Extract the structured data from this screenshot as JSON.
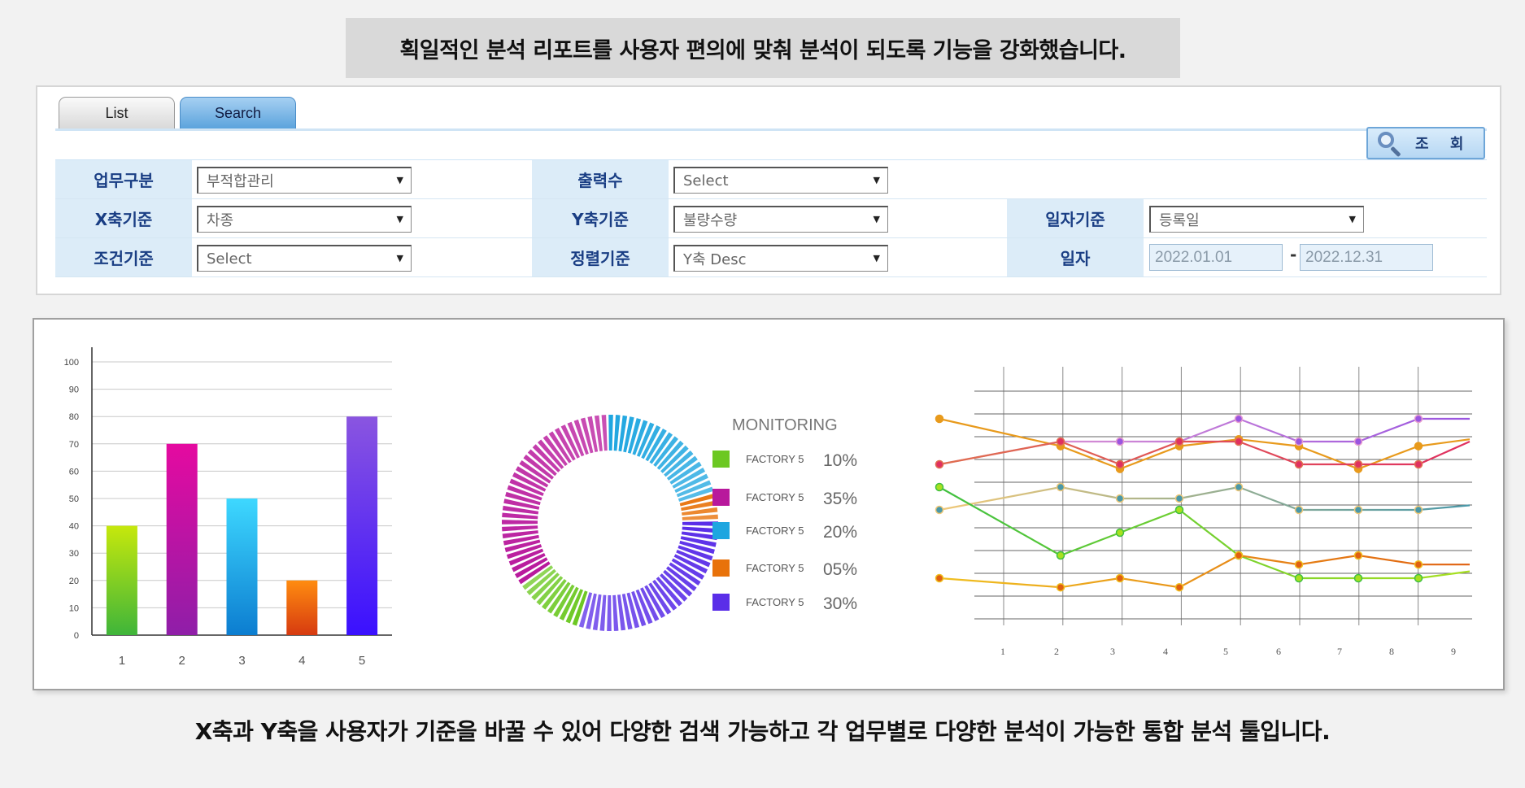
{
  "captions": {
    "top": "획일적인 분석 리포트를 사용자 편의에 맞춰 분석이 되도록 기능을 강화했습니다.",
    "bottom": "X축과 Y축을 사용자가 기준을 바꿀 수 있어 다양한 검색 가능하고 각 업무별로 다양한 분석이 가능한 통합 분석 툴입니다."
  },
  "tabs": [
    {
      "label": "List",
      "active": false
    },
    {
      "label": "Search",
      "active": true
    }
  ],
  "query_button": {
    "label": "조 회",
    "icon": "search-icon"
  },
  "form": {
    "business_type": {
      "label": "업무구분",
      "value": "부적합관리"
    },
    "output_count": {
      "label": "출력수",
      "value": "Select"
    },
    "x_axis": {
      "label": "X축기준",
      "value": "차종"
    },
    "y_axis": {
      "label": "Y축기준",
      "value": "불량수량"
    },
    "date_basis": {
      "label": "일자기준",
      "value": "등록일"
    },
    "condition": {
      "label": "조건기준",
      "value": "Select"
    },
    "sort": {
      "label": "정렬기준",
      "value": "Y축 Desc"
    },
    "date": {
      "label": "일자",
      "from": "2022.01.01",
      "separator": "-",
      "to": "2022.12.31"
    }
  },
  "chart_data": [
    {
      "type": "bar",
      "categories": [
        "1",
        "2",
        "3",
        "4",
        "5"
      ],
      "values": [
        40,
        70,
        50,
        20,
        80
      ],
      "ylim": [
        0,
        100
      ],
      "yticks": [
        "0",
        "10",
        "20",
        "30",
        "40",
        "50",
        "60",
        "70",
        "80",
        "90",
        "100"
      ],
      "grid": true,
      "colors": [
        [
          "#c6e80c",
          "#3fb53a"
        ],
        [
          "#e50aa0",
          "#8f1ea8"
        ],
        [
          "#3ed8ff",
          "#0c7dd0"
        ],
        [
          "#ff8c10",
          "#d63a10"
        ],
        [
          "#8a55e0",
          "#3a10ff"
        ]
      ]
    },
    {
      "type": "pie",
      "title": "MONITORING",
      "donut": true,
      "slices": [
        {
          "name": "FACTORY 5",
          "value": 10,
          "label": "10%",
          "color": "#6cc822"
        },
        {
          "name": "FACTORY 5",
          "value": 35,
          "label": "35%",
          "color": "#b8189c"
        },
        {
          "name": "FACTORY 5",
          "value": 20,
          "label": "20%",
          "color": "#1ea6e0"
        },
        {
          "name": "FACTORY 5",
          "value": 5,
          "label": "05%",
          "color": "#e8720a"
        },
        {
          "name": "FACTORY 5",
          "value": 30,
          "label": "30%",
          "color": "#5a2ee8"
        }
      ]
    },
    {
      "type": "line",
      "x": [
        "1",
        "2",
        "3",
        "4",
        "5",
        "6",
        "7",
        "8",
        "9"
      ],
      "grid": true,
      "series": [
        {
          "colors": [
            "#e89a1c",
            "#e89a1c"
          ],
          "values": [
            85,
            73,
            63,
            73,
            76,
            73,
            63,
            73,
            76
          ]
        },
        {
          "colors": [
            "#e8a0d0",
            "#9a55e0"
          ],
          "values": [
            65,
            75,
            75,
            75,
            85,
            75,
            75,
            85,
            85
          ]
        },
        {
          "colors": [
            "#e07050",
            "#e03060"
          ],
          "values": [
            65,
            75,
            65,
            75,
            75,
            65,
            65,
            65,
            75
          ]
        },
        {
          "colors": [
            "#f0c878",
            "#4a98a8"
          ],
          "values": [
            45,
            55,
            50,
            50,
            55,
            45,
            45,
            45,
            47
          ]
        },
        {
          "colors": [
            "#40c040",
            "#a8e020"
          ],
          "values": [
            55,
            25,
            35,
            45,
            25,
            15,
            15,
            15,
            18
          ]
        },
        {
          "colors": [
            "#f0c020",
            "#e06010"
          ],
          "values": [
            15,
            11,
            15,
            11,
            25,
            21,
            25,
            21,
            21
          ]
        }
      ]
    }
  ]
}
